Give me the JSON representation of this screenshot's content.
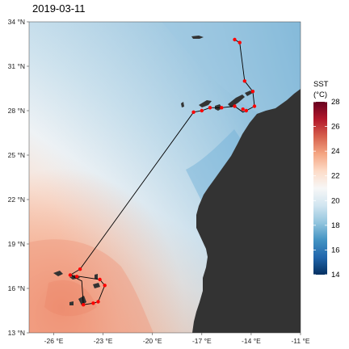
{
  "title": "2019-03-11",
  "map": {
    "lon_range": [
      -27.5,
      -11
    ],
    "lat_range": [
      13,
      34
    ],
    "x_ticks": [
      {
        "value": -26,
        "label": "-26 °E"
      },
      {
        "value": -23,
        "label": "-23 °E"
      },
      {
        "value": -20,
        "label": "-20 °E"
      },
      {
        "value": -17,
        "label": "-17 °E"
      },
      {
        "value": -14,
        "label": "-14 °E"
      },
      {
        "value": -11,
        "label": "-11 °E"
      }
    ],
    "y_ticks": [
      {
        "value": 34,
        "label": "34 °N"
      },
      {
        "value": 31,
        "label": "31 °N"
      },
      {
        "value": 28,
        "label": "28 °N"
      },
      {
        "value": 25,
        "label": "25 °N"
      },
      {
        "value": 22,
        "label": "22 °N"
      },
      {
        "value": 19,
        "label": "19 °N"
      },
      {
        "value": 16,
        "label": "16 °N"
      },
      {
        "value": 13,
        "label": "13 °N"
      }
    ],
    "track": [
      {
        "lon": -15.0,
        "lat": 32.8
      },
      {
        "lon": -14.7,
        "lat": 32.6
      },
      {
        "lon": -14.4,
        "lat": 30.0
      },
      {
        "lon": -13.9,
        "lat": 29.3
      },
      {
        "lon": -13.8,
        "lat": 28.3
      },
      {
        "lon": -14.3,
        "lat": 28.0
      },
      {
        "lon": -14.5,
        "lat": 27.9
      },
      {
        "lon": -15.0,
        "lat": 28.3
      },
      {
        "lon": -15.8,
        "lat": 28.2
      },
      {
        "lon": -16.5,
        "lat": 28.2
      },
      {
        "lon": -17.0,
        "lat": 28.0
      },
      {
        "lon": -17.5,
        "lat": 27.9
      },
      {
        "lon": -24.4,
        "lat": 17.3
      },
      {
        "lon": -25.0,
        "lat": 16.9
      },
      {
        "lon": -24.4,
        "lat": 16.8
      },
      {
        "lon": -23.2,
        "lat": 16.6
      },
      {
        "lon": -22.9,
        "lat": 16.2
      },
      {
        "lon": -23.3,
        "lat": 15.1
      },
      {
        "lon": -23.6,
        "lat": 15.0
      },
      {
        "lon": -24.2,
        "lat": 14.9
      },
      {
        "lon": -24.3,
        "lat": 16.5
      },
      {
        "lon": -25.0,
        "lat": 16.9
      }
    ],
    "stations": [
      {
        "lon": -15.0,
        "lat": 32.8
      },
      {
        "lon": -14.7,
        "lat": 32.6
      },
      {
        "lon": -14.4,
        "lat": 30.0
      },
      {
        "lon": -13.9,
        "lat": 29.3
      },
      {
        "lon": -13.8,
        "lat": 28.3
      },
      {
        "lon": -14.3,
        "lat": 28.0
      },
      {
        "lon": -14.5,
        "lat": 28.1
      },
      {
        "lon": -15.0,
        "lat": 28.3
      },
      {
        "lon": -15.8,
        "lat": 28.2
      },
      {
        "lon": -16.5,
        "lat": 28.2
      },
      {
        "lon": -17.0,
        "lat": 28.0
      },
      {
        "lon": -17.5,
        "lat": 27.9
      },
      {
        "lon": -24.4,
        "lat": 17.3
      },
      {
        "lon": -25.0,
        "lat": 16.9
      },
      {
        "lon": -24.6,
        "lat": 16.8
      },
      {
        "lon": -23.2,
        "lat": 16.6
      },
      {
        "lon": -22.9,
        "lat": 16.2
      },
      {
        "lon": -23.3,
        "lat": 15.1
      },
      {
        "lon": -23.6,
        "lat": 15.0
      },
      {
        "lon": -24.2,
        "lat": 14.9
      }
    ],
    "colors": {
      "land": "#333333",
      "track_line": "#000000",
      "station_point": "#ff0000"
    }
  },
  "legend": {
    "title_line1": "SST",
    "title_line2": "(°C)",
    "ticks": [
      {
        "value": 28,
        "label": "28"
      },
      {
        "value": 26,
        "label": "26"
      },
      {
        "value": 24,
        "label": "24"
      },
      {
        "value": 22,
        "label": "22"
      },
      {
        "value": 20,
        "label": "20"
      },
      {
        "value": 18,
        "label": "18"
      },
      {
        "value": 16,
        "label": "16"
      },
      {
        "value": 14,
        "label": "14"
      }
    ],
    "range": [
      14,
      28
    ],
    "color_stops": [
      "#67001f",
      "#b2182b",
      "#d6604d",
      "#f4a582",
      "#fddbc7",
      "#f7f7f7",
      "#d1e5f0",
      "#92c5de",
      "#4393c3",
      "#2166ac",
      "#053061"
    ]
  }
}
